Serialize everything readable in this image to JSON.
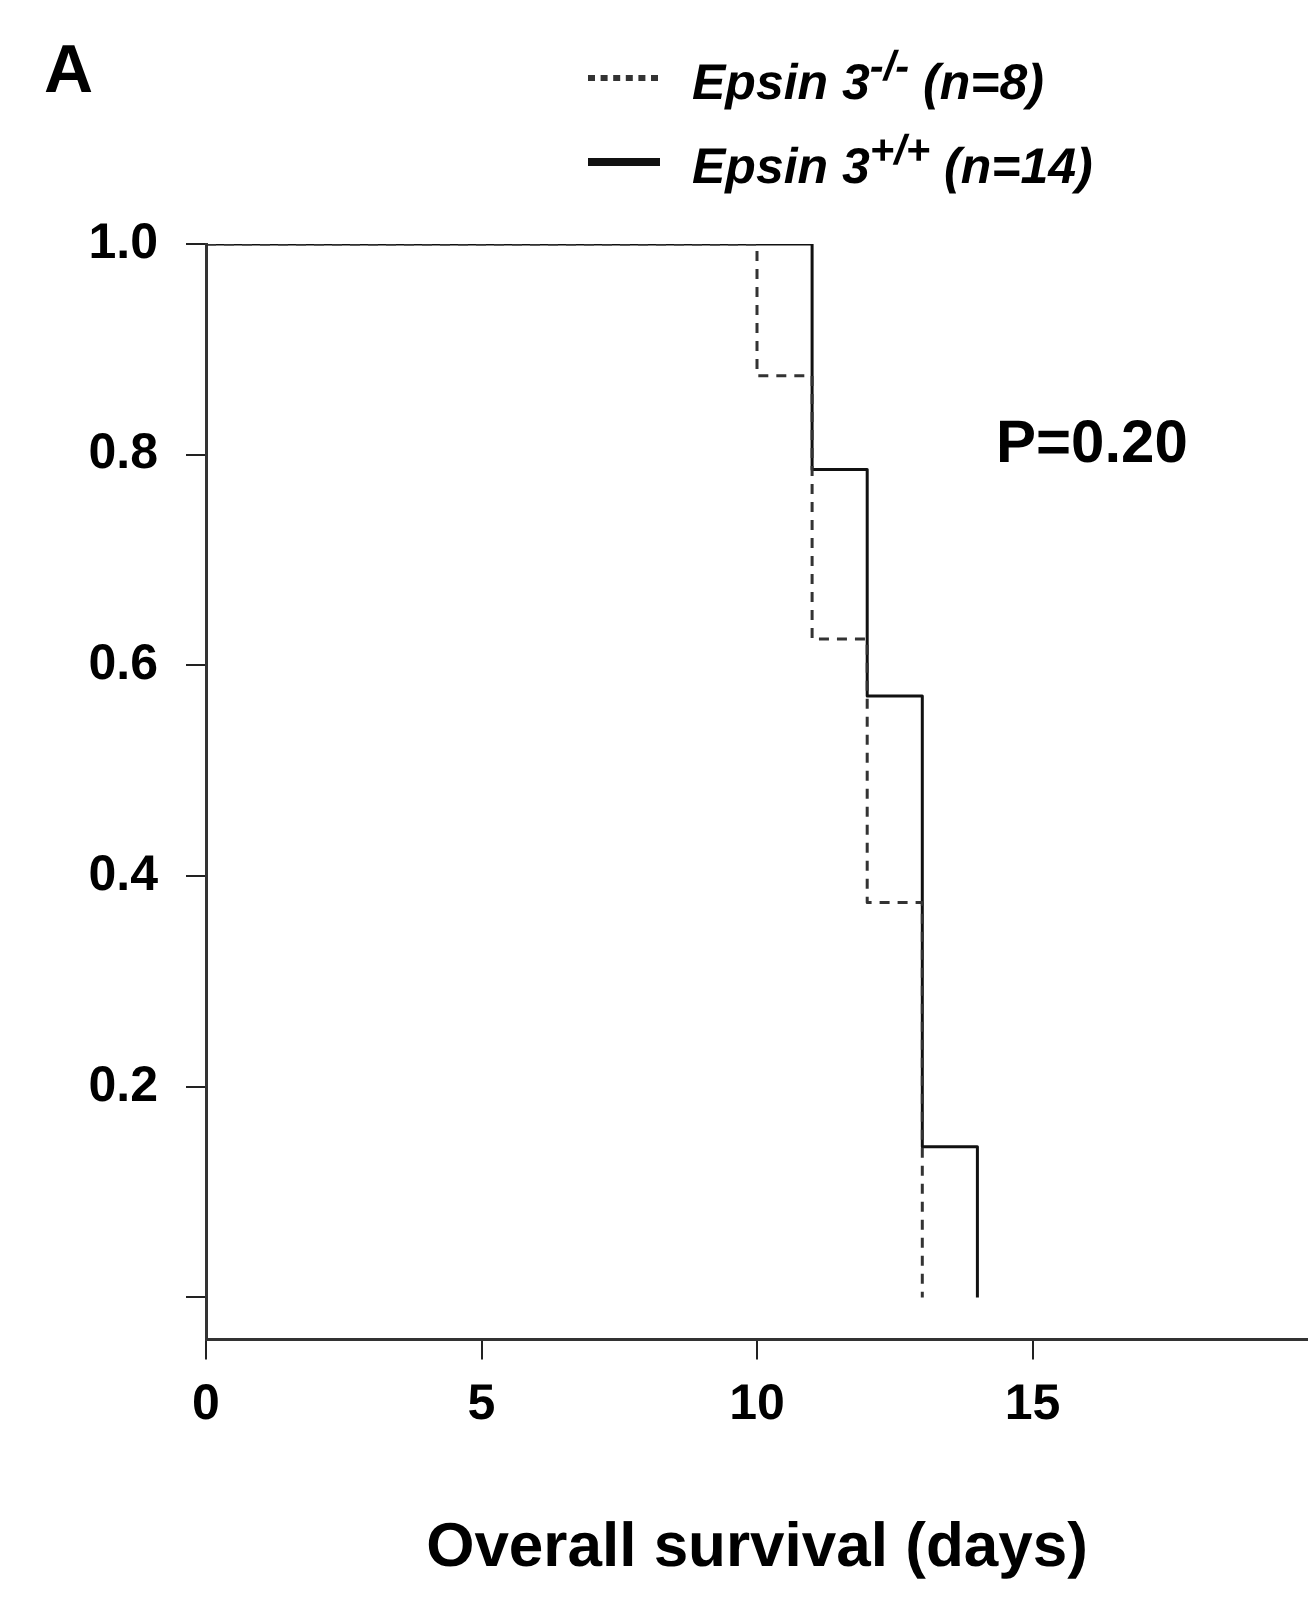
{
  "chart_data": {
    "type": "step",
    "xlabel": "Overall survival (days)",
    "annotations": [
      "A",
      "P=0.20"
    ],
    "xlim": [
      0,
      20
    ],
    "xticks": [
      0,
      5,
      10,
      15
    ],
    "ylim": [
      -0.04,
      1.0
    ],
    "yticks": [
      {
        "value": 0,
        "label": null
      },
      0.2,
      0.4,
      0.6,
      0.8,
      {
        "value": 1.0,
        "label": "1.0"
      }
    ],
    "grid": false,
    "legend": "top",
    "marker": "none",
    "series": [
      {
        "name": "Epsin 3$^{-/-}$ (n=8)",
        "color": "#333333",
        "line_style": "dashed",
        "x": [
          0,
          10,
          11,
          12,
          13
        ],
        "values": [
          1,
          0.875,
          0.625,
          0.375,
          0
        ]
      },
      {
        "name": "Epsin 3$^{+/+}$ (n=14)",
        "color": "#111111",
        "line_style": "solid",
        "x": [
          0,
          11,
          12,
          13,
          14
        ],
        "values": [
          1,
          0.786,
          0.571,
          0.143,
          0
        ]
      }
    ]
  }
}
